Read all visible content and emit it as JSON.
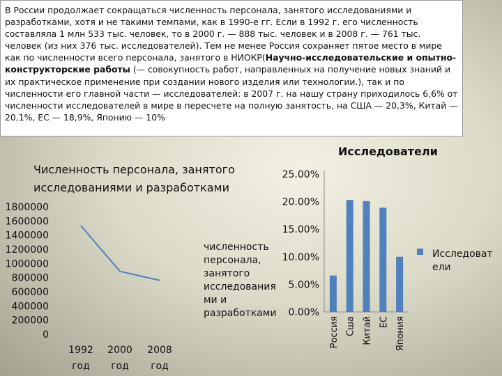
{
  "intro": {
    "before_bold": "В России продолжает сокращаться численность персонала, занятого исследованиями и разработками, хотя и не такими темпами, как в 1990-е гг. Если в 1992 г. его численность составляла 1 млн 533 тыс. человек, то в 2000 г. — 888 тыс. человек и в 2008 г. — 761 тыс. человек (из них 376 тыс. исследователей). Тем не менее Россия сохраняет пятое место в мире как по численности всего персонала, занятого в НИОКР(",
    "bold": "Научно-исследовательские и опытно-конструкторские работы",
    "after_bold": " (— совокупность работ, направленных на получение новых знаний и их практическое применение при создании нового изделия или технологии.), так и по численности его главной части — исследователей: в 2007 г. на нашу страну приходилось 6,6% от численности исследователей в мире в пересчете на полную занятость, на США — 20,3%, Китай — 20,1%, ЕС — 18,9%, Японию — 10%"
  },
  "chart_data": [
    {
      "type": "line",
      "title_lines": [
        "Численность персонала, занятого",
        "исследованиями и разработками"
      ],
      "x_labels": [
        [
          "1992",
          "год"
        ],
        [
          "2000",
          "год"
        ],
        [
          "2008",
          "год"
        ]
      ],
      "values": [
        1533000,
        888000,
        761000
      ],
      "ylim": [
        0,
        1800000
      ],
      "y_ticks": [
        "1800000",
        "1600000",
        "1400000",
        "1200000",
        "1000000",
        "800000",
        "600000",
        "400000",
        "200000",
        "0"
      ],
      "legend_lines": [
        "численность",
        "персонала,",
        "занятого",
        "исследования",
        "ми и",
        "разработками"
      ],
      "series_color": "#4f81bd"
    },
    {
      "type": "bar",
      "title": "Исследователи",
      "categories": [
        "Россия",
        "Сша",
        "Китай",
        "ЕС",
        "Япония"
      ],
      "values": [
        6.6,
        20.3,
        20.1,
        18.9,
        10
      ],
      "ylim": [
        0,
        25
      ],
      "y_ticks": [
        "25.00%",
        "20.00%",
        "15.00%",
        "10.00%",
        "5.00%",
        "0.00%"
      ],
      "legend_lines": [
        "Исследоват",
        "ели"
      ],
      "series_color": "#4f81bd"
    }
  ]
}
